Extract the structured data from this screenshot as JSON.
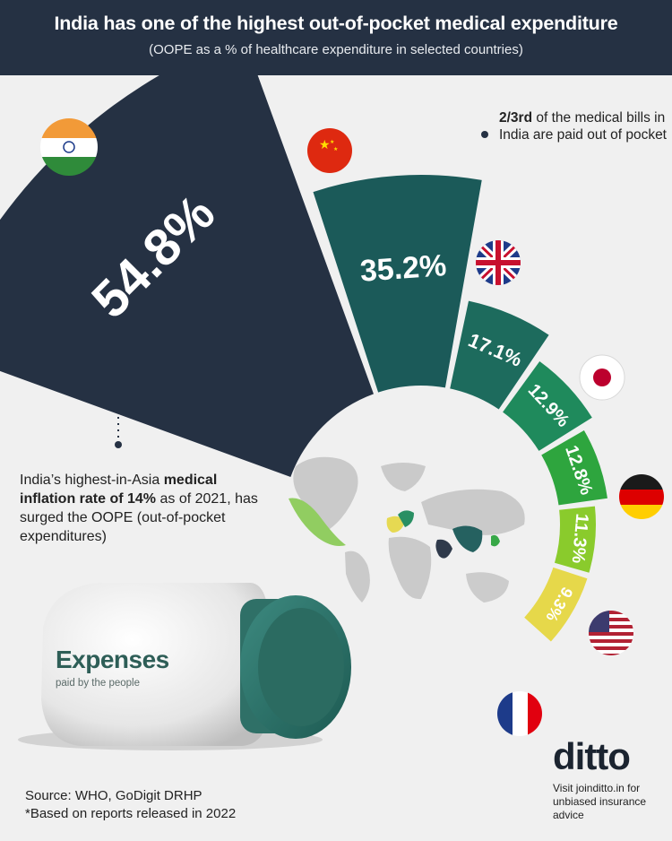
{
  "header": {
    "title": "India has one of the highest out-of-pocket medical expenditure",
    "subtitle": "(OOPE as a % of healthcare expenditure in selected countries)"
  },
  "chart_data": {
    "type": "bar",
    "title": "India has one of the highest out-of-pocket medical expenditure",
    "subtitle": "(OOPE as a % of healthcare expenditure in selected countries)",
    "unit": "%",
    "categories": [
      "India",
      "China",
      "United Kingdom",
      "Japan",
      "Germany",
      "United States",
      "France"
    ],
    "values": [
      54.8,
      35.2,
      17.1,
      12.9,
      12.8,
      11.3,
      9.3
    ],
    "labels": [
      "54.8%",
      "35.2%",
      "17.1%",
      "12.9%",
      "12.8%",
      "11.3%",
      "9.3%"
    ],
    "colors": [
      "#253143",
      "#1b5a59",
      "#1d6b5d",
      "#1f8a5c",
      "#2ea53e",
      "#8acb2c",
      "#e6d84a"
    ],
    "layout": "radial-fan"
  },
  "notes": {
    "top_bold": "2/3rd",
    "top_rest": " of the medical bills in India are paid out of pocket",
    "left_a": "India’s highest-in-Asia ",
    "left_bold": "medical inflation rate of 14%",
    "left_b": " as of 2021, has surged the OOPE (out-of-pocket expenditures)"
  },
  "bottle": {
    "title": "Expenses",
    "subtitle": "paid by the people"
  },
  "source": {
    "line1": "Source: WHO, GoDigit DRHP",
    "line2": "*Based on reports released in 2022"
  },
  "brand": {
    "logo": "ditto",
    "tagline": "Visit joinditto.in for unbiased insurance advice"
  },
  "icons": [
    "india-flag-icon",
    "china-flag-icon",
    "uk-flag-icon",
    "japan-flag-icon",
    "germany-flag-icon",
    "usa-flag-icon",
    "france-flag-icon",
    "world-map-icon",
    "medicine-bottle-icon"
  ]
}
